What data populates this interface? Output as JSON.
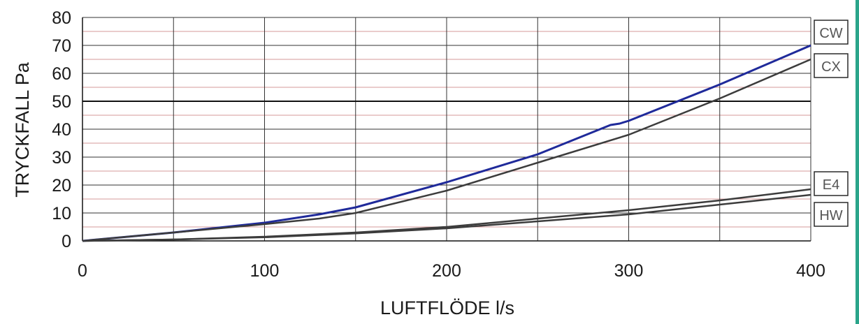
{
  "chart_data": {
    "type": "line",
    "xlabel": "LUFTFLÖDE l/s",
    "ylabel": "TRYCKFALL Pa",
    "xlim": [
      0,
      400
    ],
    "ylim": [
      0,
      80
    ],
    "x_ticks": [
      "0",
      "100",
      "200",
      "300",
      "400"
    ],
    "y_ticks": [
      "0",
      "10",
      "20",
      "30",
      "40",
      "50",
      "60",
      "70",
      "80"
    ],
    "grid": true,
    "reference_line_y": 50,
    "legend": "right",
    "series": [
      {
        "name": "CW",
        "color": "#1f2a9a",
        "x": [
          0,
          50,
          100,
          130,
          150,
          200,
          250,
          290,
          295,
          300,
          350,
          400
        ],
        "y": [
          0,
          3,
          6.5,
          9.5,
          12,
          21,
          31,
          41.5,
          42,
          43,
          56,
          70
        ]
      },
      {
        "name": "CX",
        "color": "#3c3c3c",
        "x": [
          0,
          50,
          100,
          130,
          150,
          200,
          250,
          300,
          350,
          400
        ],
        "y": [
          0,
          3,
          6,
          8,
          10,
          18,
          28,
          38,
          51,
          65
        ]
      },
      {
        "name": "E4",
        "color": "#3c3c3c",
        "x": [
          0,
          50,
          100,
          150,
          200,
          250,
          300,
          350,
          400
        ],
        "y": [
          0,
          0.5,
          1.5,
          3,
          5,
          8,
          11,
          14.5,
          18.5
        ]
      },
      {
        "name": "HW",
        "color": "#3c3c3c",
        "x": [
          0,
          50,
          100,
          150,
          200,
          250,
          300,
          350,
          400
        ],
        "y": [
          0,
          0.5,
          1.3,
          2.7,
          4.5,
          7,
          9.5,
          13,
          16.5
        ]
      }
    ]
  }
}
